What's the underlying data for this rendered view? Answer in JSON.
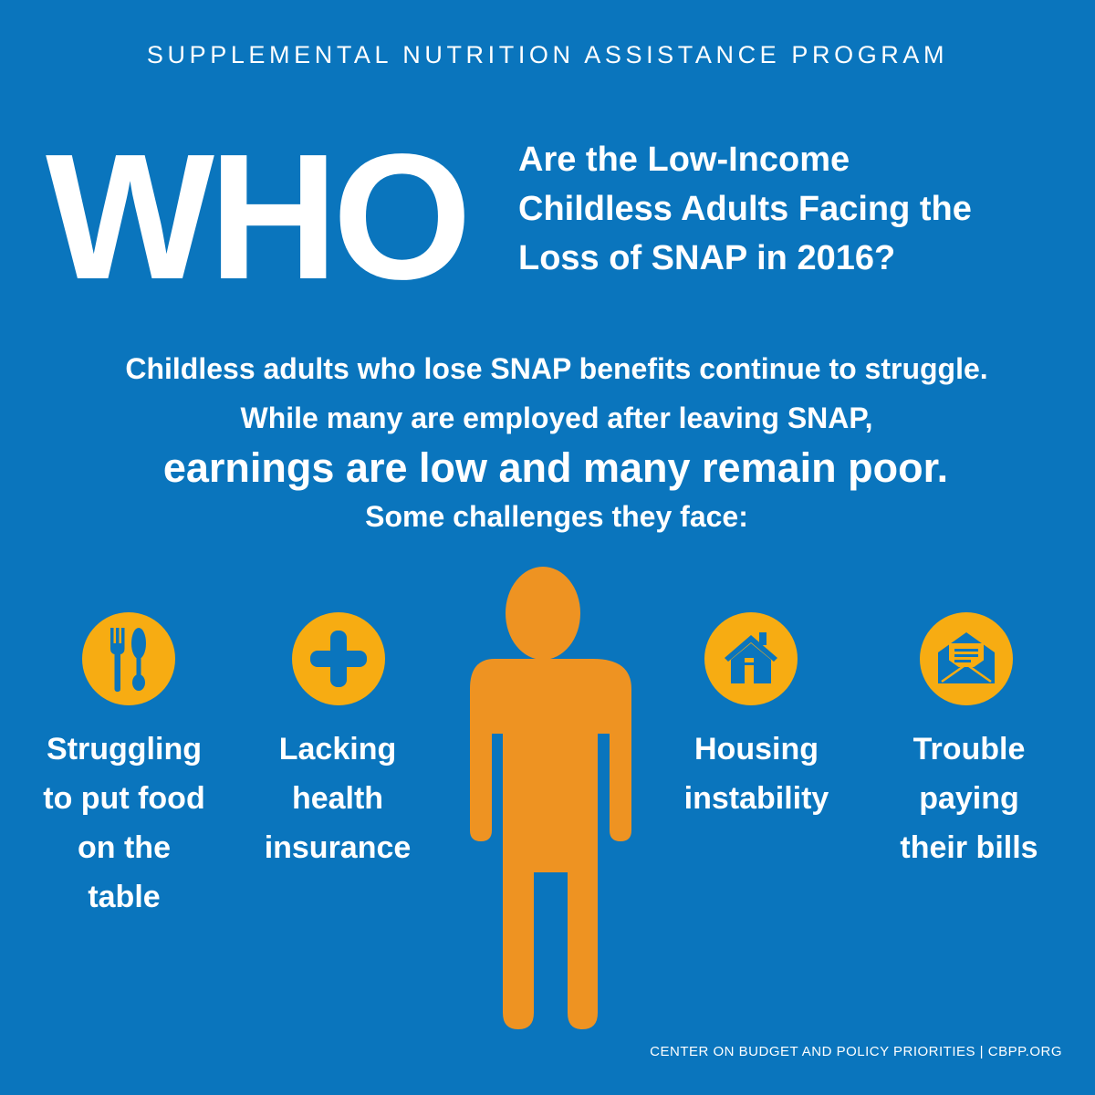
{
  "header": {
    "program": "SUPPLEMENTAL NUTRITION ASSISTANCE PROGRAM",
    "who": "WHO",
    "subtitle_lines": [
      "Are the Low-Income",
      "Childless Adults Facing the",
      "Loss of SNAP in 2016?"
    ]
  },
  "intro": {
    "line1": "Childless adults who lose SNAP benefits continue to struggle.",
    "line2": "While many are employed after leaving SNAP,",
    "line3": "earnings are low and many remain poor.",
    "line4": "Some challenges they face:"
  },
  "challenges": [
    {
      "icon": "fork-spoon-icon",
      "lines": [
        "Struggling",
        "to put food",
        "on the",
        "table"
      ]
    },
    {
      "icon": "plus-cross-icon",
      "lines": [
        "Lacking",
        "health",
        "insurance"
      ]
    },
    {
      "icon": "house-icon",
      "lines": [
        "Housing",
        "instability"
      ]
    },
    {
      "icon": "envelope-icon",
      "lines": [
        "Trouble",
        "paying",
        "their bills"
      ]
    }
  ],
  "footer": "CENTER ON BUDGET AND POLICY PRIORITIES | CBPP.ORG",
  "colors": {
    "background": "#0a75bd",
    "icon_circle": "#f7ac12",
    "person": "#ee9322",
    "text": "#ffffff"
  }
}
